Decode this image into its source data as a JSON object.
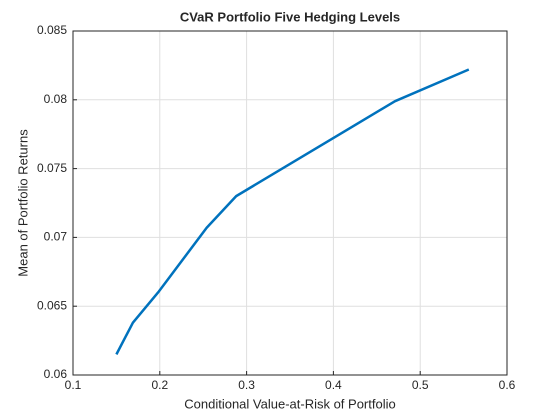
{
  "chart_data": {
    "type": "line",
    "title": "CVaR  Portfolio  Five  Hedging  Levels",
    "x_label": "Conditional Value-at-Risk of Portfolio",
    "y_label": "Mean of Portfolio Returns",
    "x": [
      0.15,
      0.169,
      0.198,
      0.254,
      0.288,
      0.471,
      0.556
    ],
    "values": [
      0.0615,
      0.0638,
      0.066,
      0.0707,
      0.073,
      0.0799,
      0.0822
    ],
    "color": "#0072bd",
    "xlim": [
      0.1,
      0.6
    ],
    "xticks": [
      0.1,
      0.2,
      0.3,
      0.4,
      0.5,
      0.6
    ],
    "ylim": [
      0.06,
      0.085
    ],
    "yticks": [
      0.06,
      0.065,
      0.07,
      0.075,
      0.08,
      0.085
    ],
    "grid": true
  }
}
